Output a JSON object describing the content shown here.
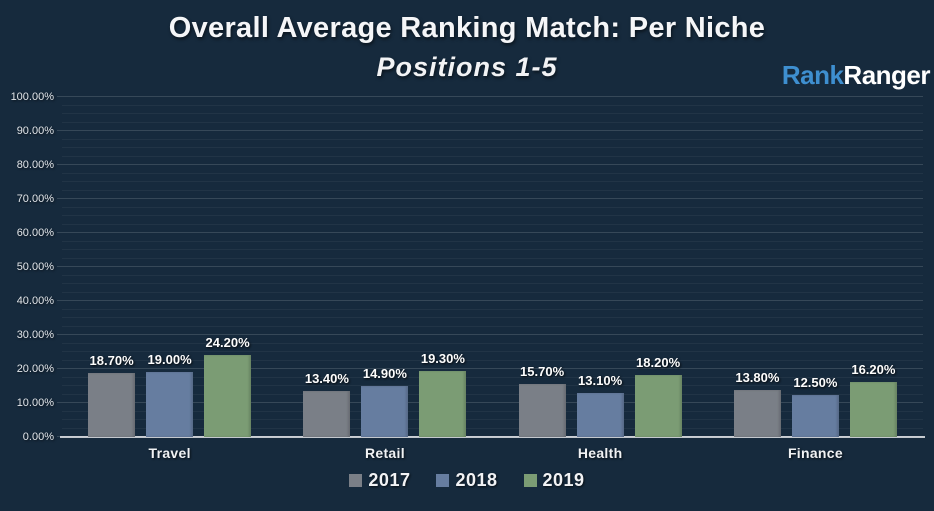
{
  "page": {
    "background_color": "#162a3d"
  },
  "header": {
    "title": "Overall Average Ranking Match: Per Niche",
    "subtitle": "Positions 1-5"
  },
  "logo": {
    "part1": "Rank",
    "part2": "Ranger",
    "part1_color": "#3e8fd0",
    "part2_color": "#ffffff"
  },
  "chart_data": {
    "type": "bar",
    "title": "Overall Average Ranking Match: Per Niche",
    "subtitle": "Positions 1-5",
    "categories": [
      "Travel",
      "Retail",
      "Health",
      "Finance"
    ],
    "series": [
      {
        "name": "2017",
        "color": "#7a7f87",
        "values": [
          18.7,
          13.4,
          15.7,
          13.8
        ],
        "data_labels": [
          "18.70%",
          "13.40%",
          "15.70%",
          "13.80%"
        ]
      },
      {
        "name": "2018",
        "color": "#667da0",
        "values": [
          19.0,
          14.9,
          13.1,
          12.5
        ],
        "data_labels": [
          "19.00%",
          "14.90%",
          "13.10%",
          "12.50%"
        ]
      },
      {
        "name": "2019",
        "color": "#7b9c74",
        "values": [
          24.2,
          19.3,
          18.2,
          16.2
        ],
        "data_labels": [
          "24.20%",
          "19.30%",
          "18.20%",
          "16.20%"
        ]
      }
    ],
    "y_axis": {
      "min": 0,
      "max": 100,
      "major_step": 10,
      "minor_step": 2.5,
      "tick_labels": [
        "100.00%",
        "90.00%",
        "80.00%",
        "70.00%",
        "60.00%",
        "50.00%",
        "40.00%",
        "30.00%",
        "20.00%",
        "10.00%",
        "0.00%"
      ]
    },
    "grid": true,
    "legend_position": "bottom"
  }
}
